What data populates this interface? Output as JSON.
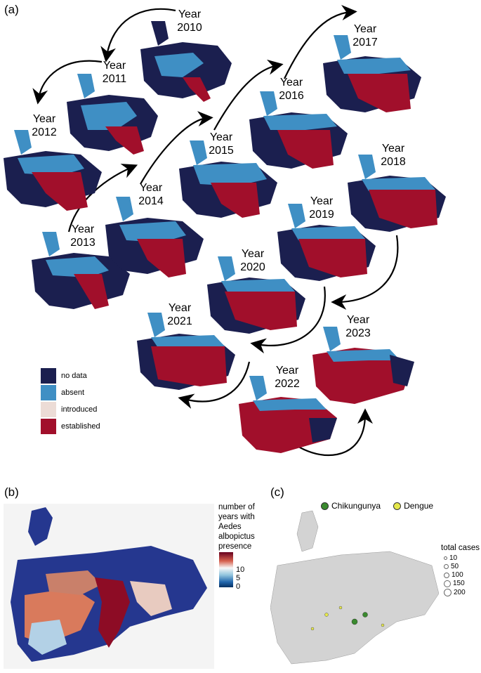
{
  "panels": {
    "a": "(a)",
    "b": "(b)",
    "c": "(c)"
  },
  "years": [
    {
      "year": "Year",
      "num": "2010"
    },
    {
      "year": "Year",
      "num": "2011"
    },
    {
      "year": "Year",
      "num": "2012"
    },
    {
      "year": "Year",
      "num": "2013"
    },
    {
      "year": "Year",
      "num": "2014"
    },
    {
      "year": "Year",
      "num": "2015"
    },
    {
      "year": "Year",
      "num": "2016"
    },
    {
      "year": "Year",
      "num": "2017"
    },
    {
      "year": "Year",
      "num": "2018"
    },
    {
      "year": "Year",
      "num": "2019"
    },
    {
      "year": "Year",
      "num": "2020"
    },
    {
      "year": "Year",
      "num": "2021"
    },
    {
      "year": "Year",
      "num": "2022"
    },
    {
      "year": "Year",
      "num": "2023"
    }
  ],
  "legend_a": [
    {
      "label": "no data",
      "color": "#1b1f4f"
    },
    {
      "label": "absent",
      "color": "#3f8fc4"
    },
    {
      "label": "introduced",
      "color": "#ecdcd6"
    },
    {
      "label": "established",
      "color": "#a10f2b"
    }
  ],
  "colorbar": {
    "title": "number of years with Aedes albopictus presence",
    "ticks": [
      "10",
      "5",
      "0"
    ],
    "colors": [
      "#67001f",
      "#d6604d",
      "#f4a582",
      "#f7f7f7",
      "#92c5de",
      "#4393c3",
      "#2166ac",
      "#053061"
    ]
  },
  "legend_c": {
    "items": [
      {
        "label": "Chikungunya",
        "color": "#3a8a2e"
      },
      {
        "label": "Dengue",
        "color": "#e5e84a"
      }
    ],
    "size_title": "total cases",
    "sizes": [
      "10",
      "50",
      "100",
      "150",
      "200"
    ]
  }
}
